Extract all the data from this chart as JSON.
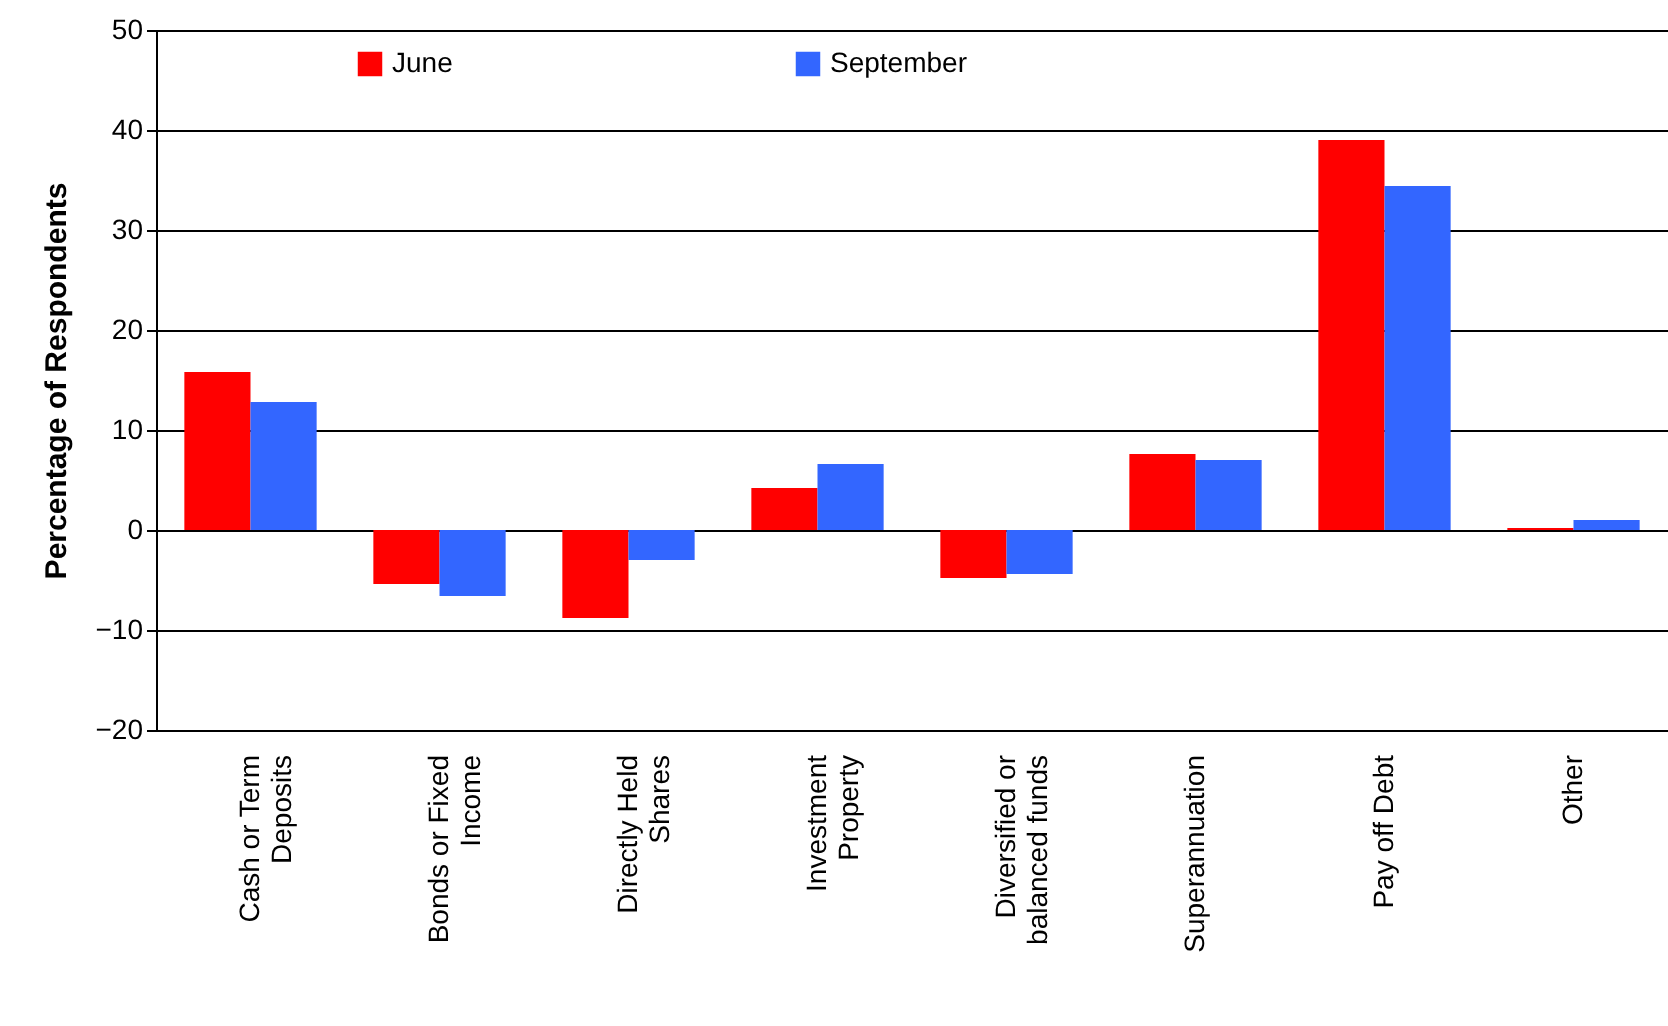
{
  "chart_data": {
    "type": "bar",
    "ylabel": "Percentage of Respondents",
    "categories": [
      "Cash or Term Deposits",
      "Bonds or Fixed Income",
      "Directly Held Shares",
      "Investment Property",
      "Diversified or balanced funds",
      "Superannuation",
      "Pay off Debt",
      "Other"
    ],
    "series": [
      {
        "name": "June",
        "color": "#ff0000",
        "values": [
          15.8,
          -5.4,
          -8.8,
          4.2,
          -4.8,
          7.6,
          39,
          0.2
        ]
      },
      {
        "name": "September",
        "color": "#3366ff",
        "values": [
          12.8,
          -6.6,
          -3.0,
          6.6,
          -4.4,
          7.0,
          34.4,
          1.0
        ]
      }
    ],
    "ylim": [
      -20,
      50
    ],
    "yticks": [
      -20,
      -10,
      0,
      10,
      20,
      30,
      40,
      50
    ],
    "grid": "y",
    "legend": "top"
  }
}
